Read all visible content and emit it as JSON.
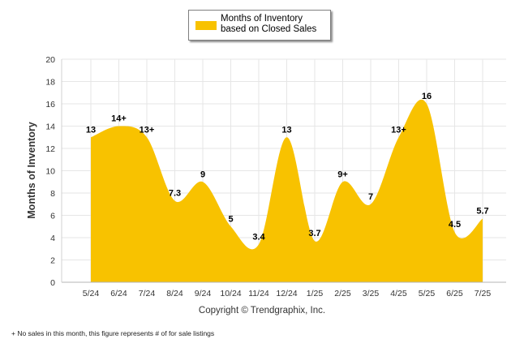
{
  "chart_data": {
    "type": "area",
    "series": [
      {
        "name": "Months of Inventory based on Closed Sales",
        "color": "#f8c200",
        "values": [
          13,
          14,
          13,
          7.3,
          9,
          5,
          3.4,
          13,
          3.7,
          9,
          7,
          13,
          16,
          4.5,
          5.7
        ],
        "labels": [
          "13",
          "14+",
          "13+",
          "7.3",
          "9",
          "5",
          "3.4",
          "13",
          "3.7",
          "9+",
          "7",
          "13+",
          "16",
          "4.5",
          "5.7"
        ]
      }
    ],
    "categories": [
      "5/24",
      "6/24",
      "7/24",
      "8/24",
      "9/24",
      "10/24",
      "11/24",
      "12/24",
      "1/25",
      "2/25",
      "3/25",
      "4/25",
      "5/25",
      "6/25",
      "7/25"
    ],
    "ylabel": "Months of Inventory",
    "ylim": [
      0,
      20
    ],
    "yticks": [
      "0",
      "2",
      "4",
      "6",
      "8",
      "10",
      "12",
      "14",
      "16",
      "18",
      "20"
    ],
    "grid": true,
    "legend_position": "top-center"
  },
  "copyright": "Copyright © Trendgraphix, Inc.",
  "footnote": "+  No sales in this month, this figure represents # of for sale listings"
}
